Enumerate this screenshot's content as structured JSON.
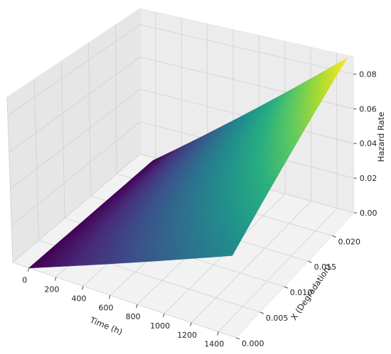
{
  "chart_data": {
    "type": "surface3d",
    "title": "",
    "xlabel": "Time (h)",
    "ylabel": "X (Degradation)",
    "zlabel": "Hazard Rate",
    "xlim": [
      -120,
      1530
    ],
    "ylim": [
      0,
      0.0245
    ],
    "zlim": [
      0,
      0.09
    ],
    "x_ticks": [
      0,
      200,
      400,
      600,
      800,
      1000,
      1200,
      1400
    ],
    "y_ticks": [
      0.0,
      0.005,
      0.01,
      0.015,
      0.02
    ],
    "z_ticks": [
      0.0,
      0.02,
      0.04,
      0.06,
      0.08
    ],
    "x_tick_labels": [
      "0",
      "200",
      "400",
      "600",
      "800",
      "1000",
      "1200",
      "1400"
    ],
    "y_tick_labels": [
      "0.000",
      "0.005",
      "0.010",
      "0.015",
      "0.020"
    ],
    "z_tick_labels": [
      "0.00",
      "0.02",
      "0.04",
      "0.06",
      "0.08"
    ],
    "colormap": "viridis",
    "colormap_stops": [
      "#440154",
      "#472d7b",
      "#3b528b",
      "#2c728e",
      "#21918c",
      "#28ae80",
      "#5ec962",
      "#addc30",
      "#fde725"
    ],
    "grid": true,
    "pane_color": "#f2f2f2",
    "surface": {
      "x": [
        0,
        1500
      ],
      "y": [
        0,
        0.024
      ],
      "z_corners": {
        "x0_y0": 0.0,
        "x0_y1": 0.0,
        "x1_y0": 0.042,
        "x1_y1": 0.09
      }
    }
  }
}
